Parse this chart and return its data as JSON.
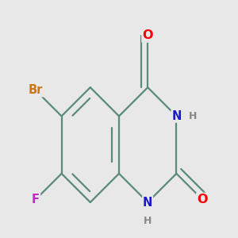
{
  "bg_color": "#E8E8E8",
  "bond_color": "#5a8a7a",
  "bond_width": 1.6,
  "atom_colors": {
    "O": "#ff0000",
    "N": "#1a1acc",
    "Br": "#cc7711",
    "F": "#cc22cc",
    "H": "#888888",
    "C": "#5a8a7a"
  },
  "font_size": 10.5,
  "fig_size": [
    3.0,
    3.0
  ],
  "dpi": 100
}
